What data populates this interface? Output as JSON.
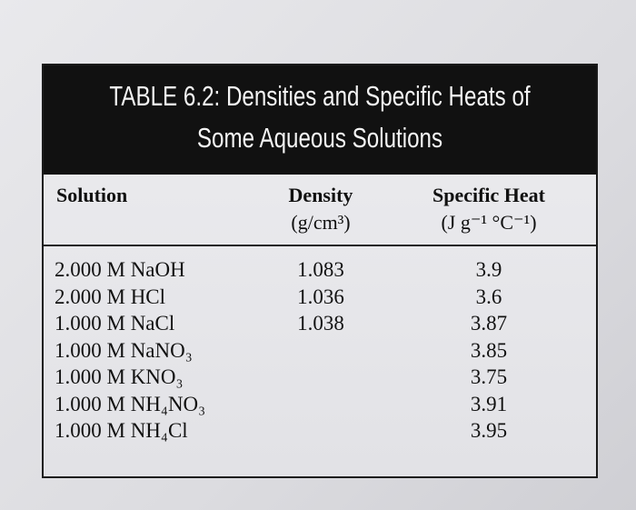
{
  "table": {
    "title": [
      "TABLE 6.2: Densities and Specific Heats of",
      "Some Aqueous Solutions"
    ],
    "columns": [
      [
        "Solution"
      ],
      [
        "Density",
        "(g/cm³)"
      ],
      [
        "Specific Heat",
        "(J g⁻¹ °C⁻¹)"
      ]
    ],
    "rows": [
      [
        "2.000 M NaOH",
        "1.083",
        "3.9"
      ],
      [
        "2.000 M HCl",
        "1.036",
        "3.6"
      ],
      [
        "1.000 M NaCl",
        "1.038",
        "3.87"
      ],
      [
        "1.000 M NaNO₃",
        "",
        "3.85"
      ],
      [
        "1.000 M KNO₃",
        "",
        "3.75"
      ],
      [
        "1.000 M NH₄NO₃",
        "",
        "3.91"
      ],
      [
        "1.000 M NH₄Cl",
        "",
        "3.95"
      ]
    ]
  }
}
